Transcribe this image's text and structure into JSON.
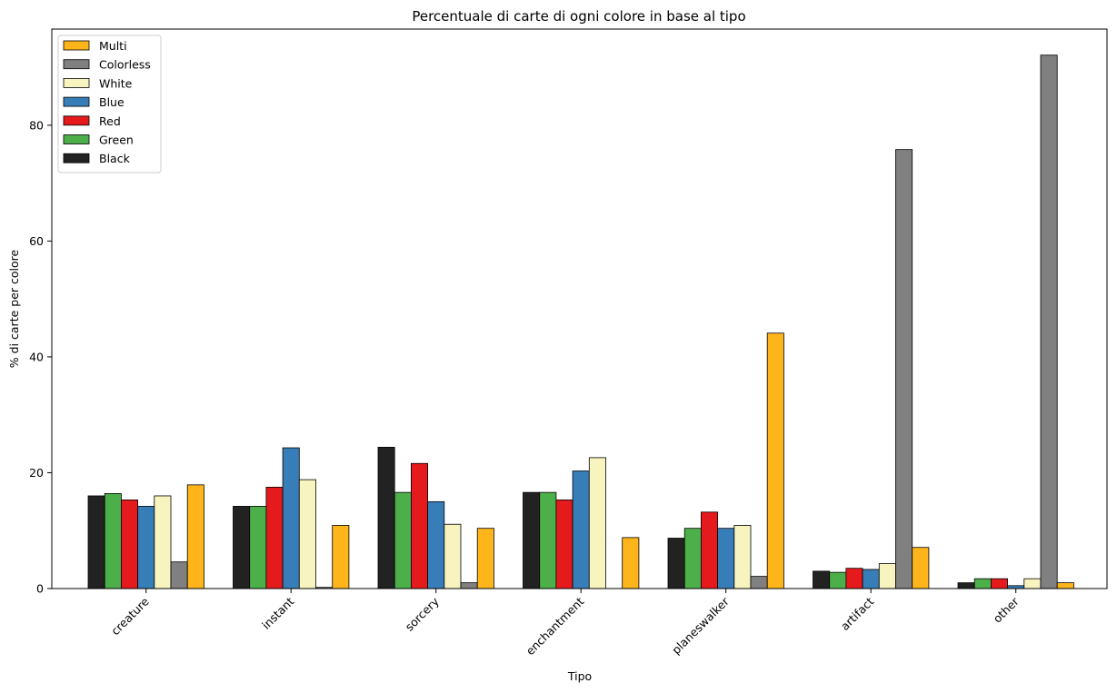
{
  "chart_data": {
    "type": "bar",
    "title": "Percentuale di carte di ogni colore in base al tipo",
    "xlabel": "Tipo",
    "ylabel": "% di carte per colore",
    "ylim": [
      0,
      96.6
    ],
    "yticks": [
      0,
      20,
      40,
      60,
      80
    ],
    "grid": false,
    "legend_position": "top-left",
    "categories": [
      "creature",
      "instant",
      "sorcery",
      "enchantment",
      "planeswalker",
      "artifact",
      "other"
    ],
    "series": [
      {
        "name": "Black",
        "color": "#222222",
        "values": [
          16.0,
          14.2,
          24.4,
          16.6,
          8.7,
          3.0,
          1.0
        ]
      },
      {
        "name": "Green",
        "color": "#4daf4a",
        "values": [
          16.4,
          14.2,
          16.6,
          16.6,
          10.4,
          2.8,
          1.7
        ]
      },
      {
        "name": "Red",
        "color": "#e41a1c",
        "values": [
          15.3,
          17.5,
          21.6,
          15.3,
          13.2,
          3.5,
          1.7
        ]
      },
      {
        "name": "Blue",
        "color": "#377eb8",
        "values": [
          14.2,
          24.3,
          15.0,
          20.3,
          10.4,
          3.3,
          0.5
        ]
      },
      {
        "name": "White",
        "color": "#f7f4bf",
        "values": [
          16.0,
          18.8,
          11.1,
          22.6,
          10.9,
          4.3,
          1.7
        ]
      },
      {
        "name": "Colorless",
        "color": "#808080",
        "values": [
          4.6,
          0.2,
          1.0,
          0.0,
          2.1,
          75.8,
          92.1
        ]
      },
      {
        "name": "Multi",
        "color": "#fdb51b",
        "values": [
          17.9,
          10.9,
          10.4,
          8.8,
          44.1,
          7.1,
          1.0
        ]
      }
    ],
    "legend_order": [
      "Multi",
      "Colorless",
      "White",
      "Blue",
      "Red",
      "Green",
      "Black"
    ]
  }
}
